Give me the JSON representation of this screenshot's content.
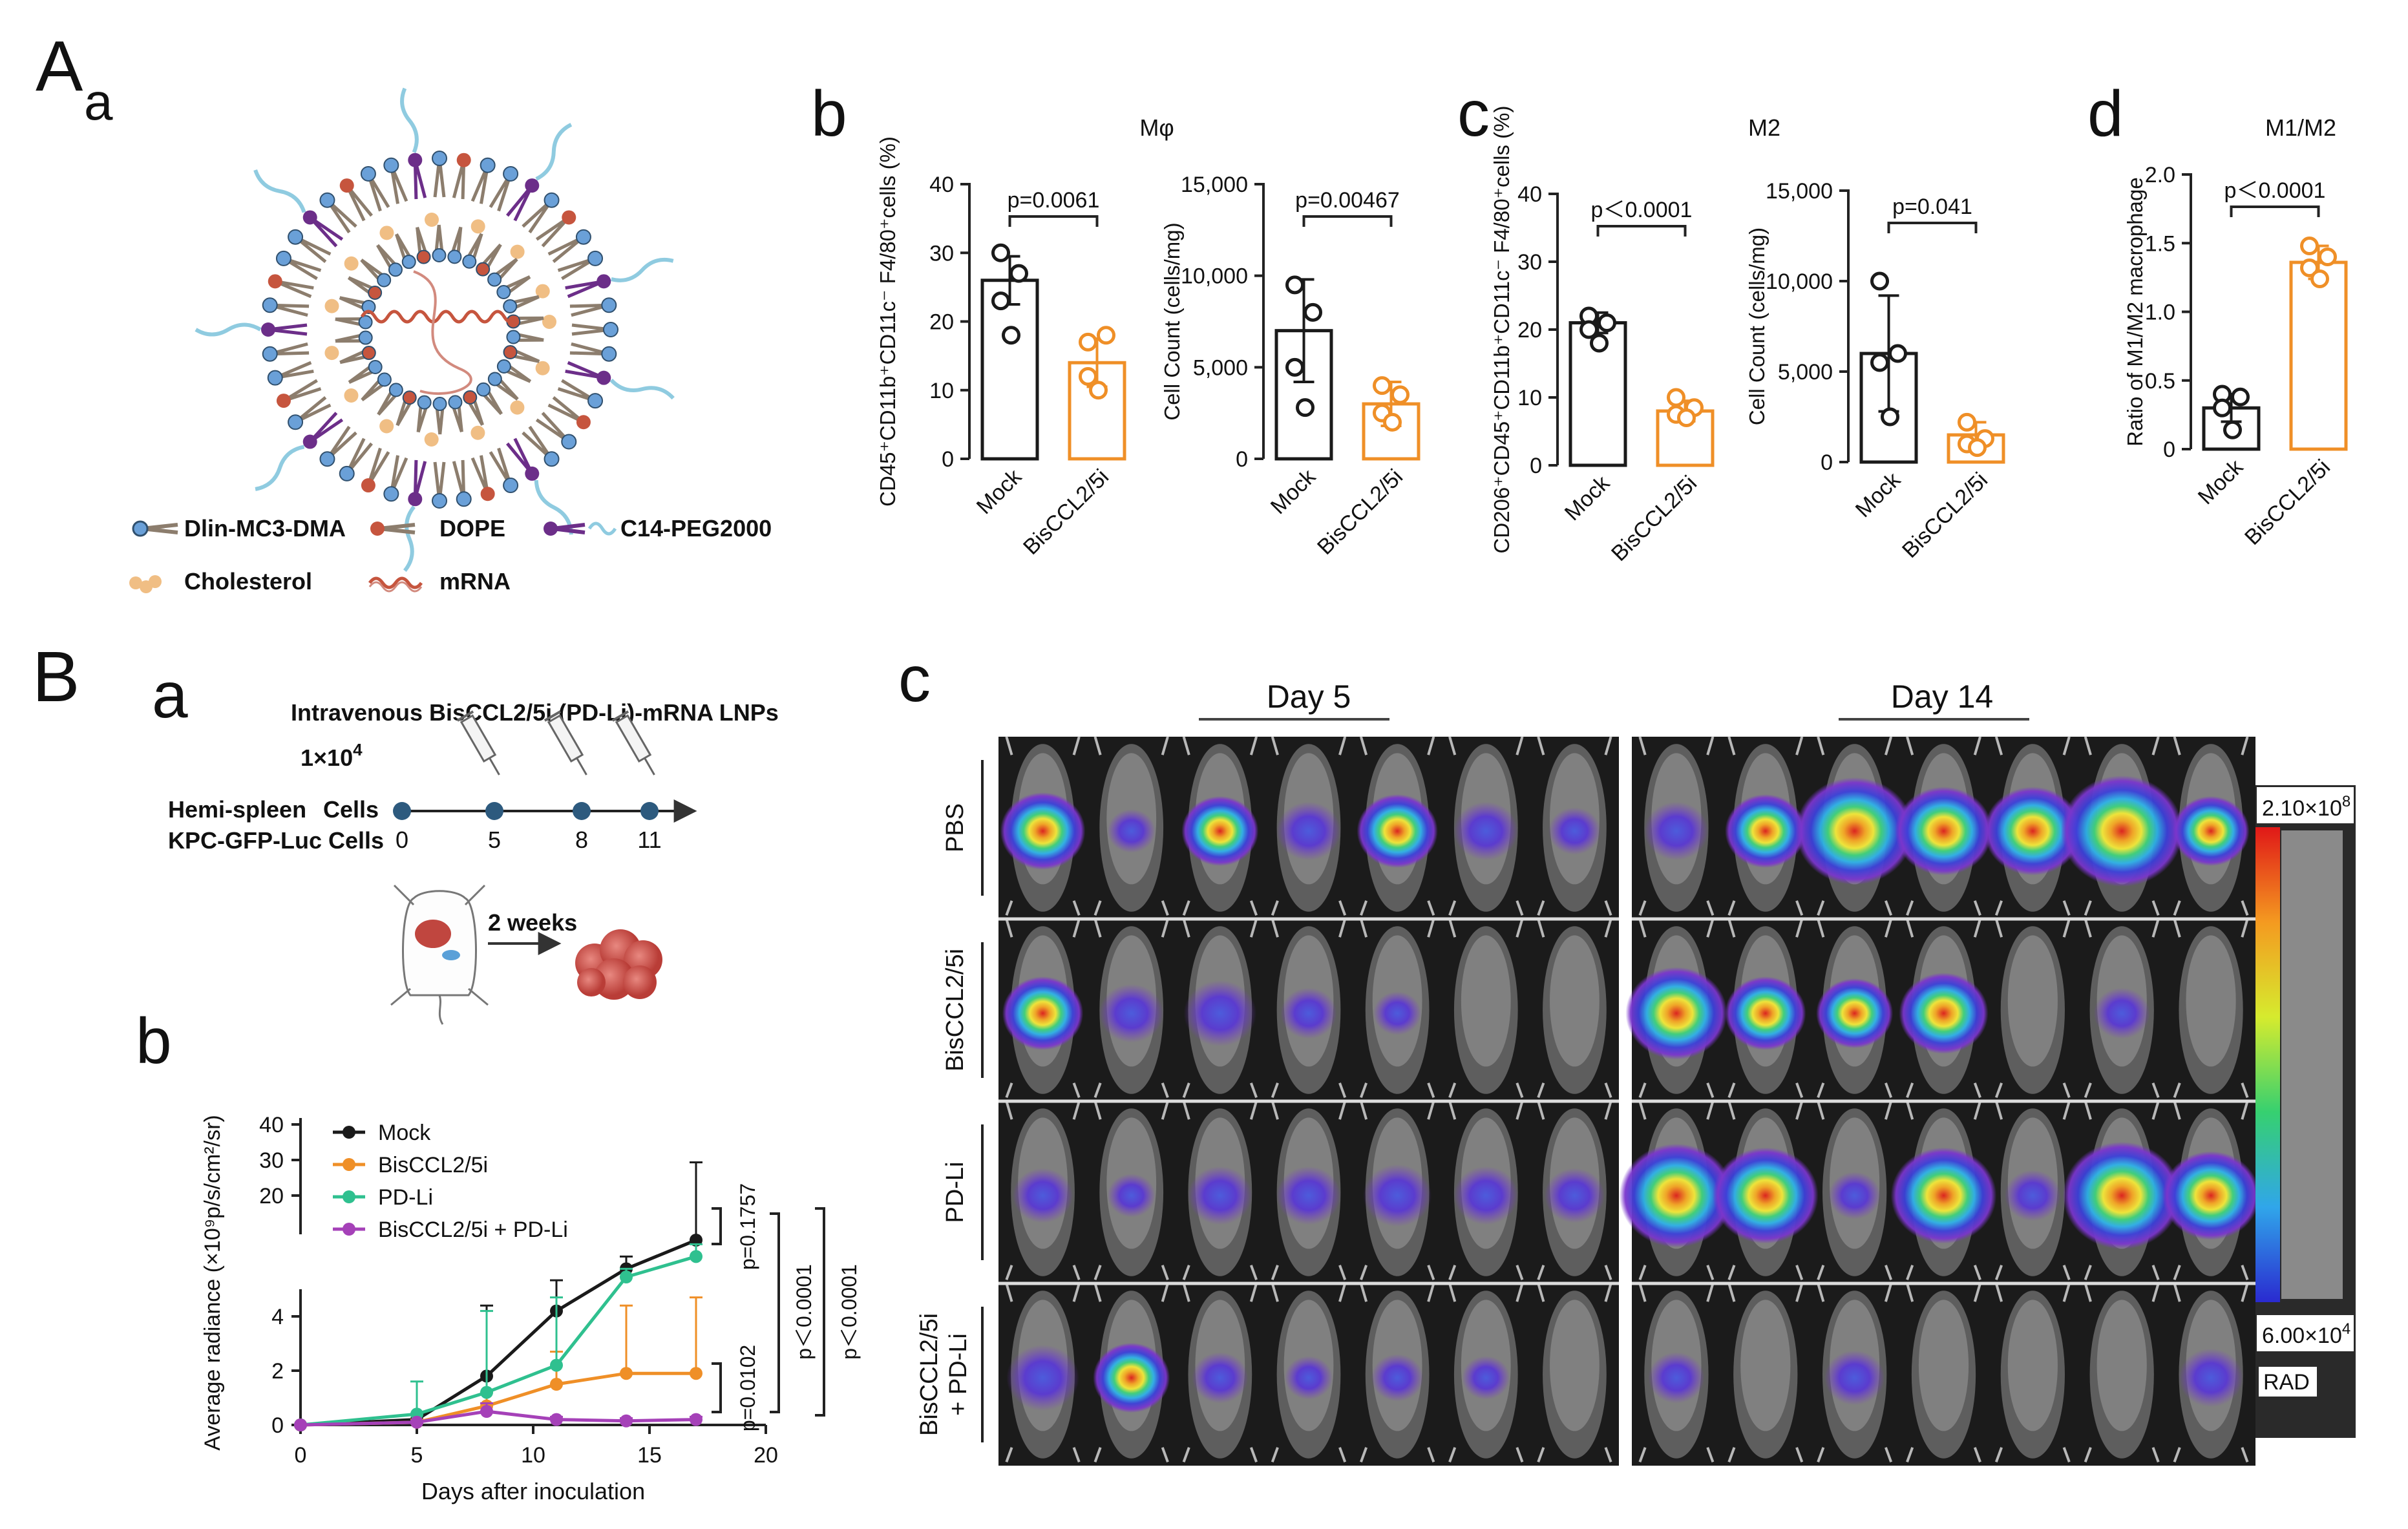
{
  "colors": {
    "mock": "#1a1a1a",
    "bis": "#ef8f27",
    "pdli": "#2fc08f",
    "combo": "#a541b8",
    "lnp_head": "#6aa0d8",
    "lnp_lipid": "#8c7d6d",
    "lnp_purple": "#6c2e89",
    "lnp_red": "#c6553e",
    "lnp_chol": "#f0be84",
    "lnp_peg": "#8fcbe0"
  },
  "panel_labels": {
    "A": "A",
    "A_a": "a",
    "A_b": "b",
    "A_c": "c",
    "A_d": "d",
    "B": "B",
    "B_a": "a",
    "B_b": "b",
    "B_c": "c"
  },
  "legend_lnp": [
    {
      "name": "Dlin-MC3-DMA",
      "icon": "mc3-lipid-icon"
    },
    {
      "name": "DOPE",
      "icon": "dope-lipid-icon"
    },
    {
      "name": "C14-PEG2000",
      "icon": "peg-lipid-icon"
    },
    {
      "name": "Cholesterol",
      "icon": "cholesterol-icon"
    },
    {
      "name": "mRNA",
      "icon": "mrna-icon"
    }
  ],
  "chart_data": [
    {
      "id": "Ab_pct",
      "type": "bar",
      "title": "Mφ",
      "ylabel": "CD45⁺CD11b⁺CD11c⁻ F4/80⁺cells (%)",
      "ylim": [
        0,
        40
      ],
      "yticks": [
        "0",
        "10",
        "20",
        "30",
        "40"
      ],
      "categories": [
        "Mock",
        "BisCCL2/5i"
      ],
      "values": [
        26,
        14
      ],
      "errors": [
        3.5,
        3.5
      ],
      "points": [
        [
          30,
          27,
          23,
          18
        ],
        [
          17,
          18,
          12,
          10
        ]
      ],
      "pvalue": "p=0.0061"
    },
    {
      "id": "Ab_count",
      "type": "bar",
      "title": "Mφ",
      "ylabel": "Cell Count (cells/mg)",
      "ylim": [
        0,
        15000
      ],
      "yticks": [
        "0",
        "5,000",
        "10,000",
        "15,000"
      ],
      "categories": [
        "Mock",
        "BisCCL2/5i"
      ],
      "values": [
        7000,
        3000
      ],
      "errors": [
        2800,
        1200
      ],
      "points": [
        [
          9500,
          8000,
          5000,
          2800
        ],
        [
          4000,
          3500,
          2500,
          2000
        ]
      ],
      "pvalue": "p=0.00467"
    },
    {
      "id": "Ac_pct",
      "type": "bar",
      "title": "M2",
      "ylabel": "CD206⁺CD45⁺CD11b⁺CD11c⁻ F4/80⁺cells (%)",
      "ylim": [
        0,
        40
      ],
      "yticks": [
        "0",
        "10",
        "20",
        "30",
        "40"
      ],
      "categories": [
        "Mock",
        "BisCCL2/5i"
      ],
      "values": [
        21,
        8
      ],
      "errors": [
        1.5,
        1.5
      ],
      "points": [
        [
          22,
          21,
          20,
          18
        ],
        [
          10,
          8.5,
          7.5,
          7
        ]
      ],
      "pvalue": "p＜0.0001"
    },
    {
      "id": "Ac_count",
      "type": "bar",
      "title": "M2",
      "ylabel": "Cell Count (cells/mg)",
      "ylim": [
        0,
        15000
      ],
      "yticks": [
        "0",
        "5,000",
        "10,000",
        "15,000"
      ],
      "categories": [
        "Mock",
        "BisCCL2/5i"
      ],
      "values": [
        6000,
        1500
      ],
      "errors": [
        3200,
        700
      ],
      "points": [
        [
          10000,
          6000,
          5500,
          2500
        ],
        [
          2200,
          1300,
          1000,
          800
        ]
      ],
      "pvalue": "p=0.041"
    },
    {
      "id": "Ad_ratio",
      "type": "bar",
      "title": "M1/M2",
      "ylabel": "Ratio of M1/M2 macrophage",
      "ylim": [
        0,
        2.0
      ],
      "yticks": [
        "0",
        "0.5",
        "1.0",
        "1.5",
        "2.0"
      ],
      "categories": [
        "Mock",
        "BisCCL2/5i"
      ],
      "values": [
        0.3,
        1.36
      ],
      "errors": [
        0.1,
        0.12
      ],
      "points": [
        [
          0.4,
          0.38,
          0.3,
          0.14
        ],
        [
          1.48,
          1.4,
          1.32,
          1.24
        ]
      ],
      "pvalue": "p＜0.0001"
    },
    {
      "id": "Bb_radiance",
      "type": "line",
      "xlabel": "Days after inoculation",
      "ylabel": "Average radiance (×10⁹p/s/cm²/sr)",
      "xlim": [
        0,
        20
      ],
      "xticks": [
        "0",
        "5",
        "10",
        "15",
        "20"
      ],
      "yticks_low": [
        "0",
        "2",
        "4"
      ],
      "yticks_high": [
        "20",
        "30",
        "40"
      ],
      "x": [
        0,
        5,
        8,
        11,
        14,
        17
      ],
      "series": [
        {
          "name": "Mock",
          "values": [
            0,
            0.2,
            1.8,
            4.2,
            10,
            17
          ],
          "errors": [
            0,
            0.2,
            2.6,
            3,
            3,
            12
          ]
        },
        {
          "name": "BisCCL2/5i",
          "values": [
            0,
            0.1,
            0.7,
            1.5,
            1.9,
            1.9
          ],
          "errors": [
            0,
            0.1,
            0.5,
            1.2,
            2.5,
            2.8
          ]
        },
        {
          "name": "PD-Li",
          "values": [
            0,
            0.4,
            1.2,
            2.2,
            8,
            13
          ],
          "errors": [
            0,
            1.2,
            3,
            2.5,
            2,
            3
          ]
        },
        {
          "name": "BisCCL2/5i + PD-Li",
          "values": [
            0,
            0.1,
            0.5,
            0.2,
            0.15,
            0.2
          ],
          "errors": [
            0,
            0.05,
            0.3,
            0.1,
            0.1,
            0.1
          ]
        }
      ],
      "pvalues": [
        "p=0.1757",
        "p=0.0102",
        "p＜0.0001",
        "p＜0.0001"
      ]
    }
  ],
  "Ba": {
    "title": "Intravenous BisCCL2/5i (PD-Li)-mRNA LNPs",
    "cells_count": "1×10",
    "cells_exp": "4",
    "cells_word": "Cells",
    "hemi": "Hemi-spleen",
    "kpc": "KPC-GFP-Luc Cells",
    "days": [
      "0",
      "5",
      "8",
      "11"
    ],
    "two_weeks": "2 weeks"
  },
  "Bc": {
    "day5": "Day 5",
    "day14": "Day 14",
    "rows": [
      "PBS",
      "BisCCL2/5i",
      "PD-Li",
      "BisCCL2/5i\n+ PD-Li"
    ],
    "rows_line1": [
      "PBS",
      "BisCCL2/5i",
      "PD-Li",
      "BisCCL2/5i"
    ],
    "rows_line2": [
      "",
      "",
      "",
      "+ PD-Li"
    ],
    "scale_max_base": "2.10×10",
    "scale_max_exp": "8",
    "scale_min_base": "6.00×10",
    "scale_min_exp": "4",
    "scale_unit": "RAD",
    "signals_day5": [
      [
        0.55,
        0.1,
        0.45,
        0.3,
        0.5,
        0.3,
        0.15
      ],
      [
        0.5,
        0.3,
        0.4,
        0.2,
        0.1,
        0.0,
        0.0
      ],
      [
        0.25,
        0.1,
        0.3,
        0.3,
        0.35,
        0.3,
        0.25
      ],
      [
        0.4,
        0.45,
        0.2,
        0.1,
        0.15,
        0.1,
        0.0
      ]
    ],
    "signals_day14": [
      [
        0.3,
        0.5,
        0.95,
        0.7,
        0.7,
        1.0,
        0.45
      ],
      [
        0.75,
        0.5,
        0.45,
        0.6,
        0.0,
        0.2,
        0.0
      ],
      [
        0.9,
        0.8,
        0.15,
        0.8,
        0.2,
        0.95,
        0.7
      ],
      [
        0.2,
        0.0,
        0.25,
        0.0,
        0.0,
        0.0,
        0.3
      ]
    ]
  }
}
